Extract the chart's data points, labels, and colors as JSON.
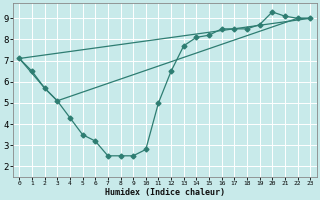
{
  "title": "",
  "xlabel": "Humidex (Indice chaleur)",
  "ylabel": "",
  "bg_color": "#c8eaea",
  "line_color": "#2e7d72",
  "grid_color": "#ffffff",
  "xlim": [
    -0.5,
    23.5
  ],
  "ylim": [
    1.5,
    9.7
  ],
  "xticks": [
    0,
    1,
    2,
    3,
    4,
    5,
    6,
    7,
    8,
    9,
    10,
    11,
    12,
    13,
    14,
    15,
    16,
    17,
    18,
    19,
    20,
    21,
    22,
    23
  ],
  "yticks": [
    2,
    3,
    4,
    5,
    6,
    7,
    8,
    9
  ],
  "series1_x": [
    0,
    1,
    2,
    3,
    4,
    5,
    6,
    7,
    8,
    9,
    10,
    11,
    12,
    13,
    14,
    15,
    16,
    17,
    18,
    19,
    20,
    21,
    22,
    23
  ],
  "series1_y": [
    7.1,
    6.5,
    5.7,
    5.1,
    4.3,
    3.5,
    3.2,
    2.5,
    2.5,
    2.5,
    2.8,
    5.0,
    6.5,
    7.7,
    8.1,
    8.2,
    8.5,
    8.5,
    8.5,
    8.7,
    9.3,
    9.1,
    9.0,
    9.0
  ],
  "series2_x": [
    0,
    2,
    3,
    22,
    23
  ],
  "series2_y": [
    7.1,
    5.7,
    5.1,
    9.0,
    9.0
  ],
  "series3_x": [
    0,
    23
  ],
  "series3_y": [
    7.1,
    9.0
  ]
}
